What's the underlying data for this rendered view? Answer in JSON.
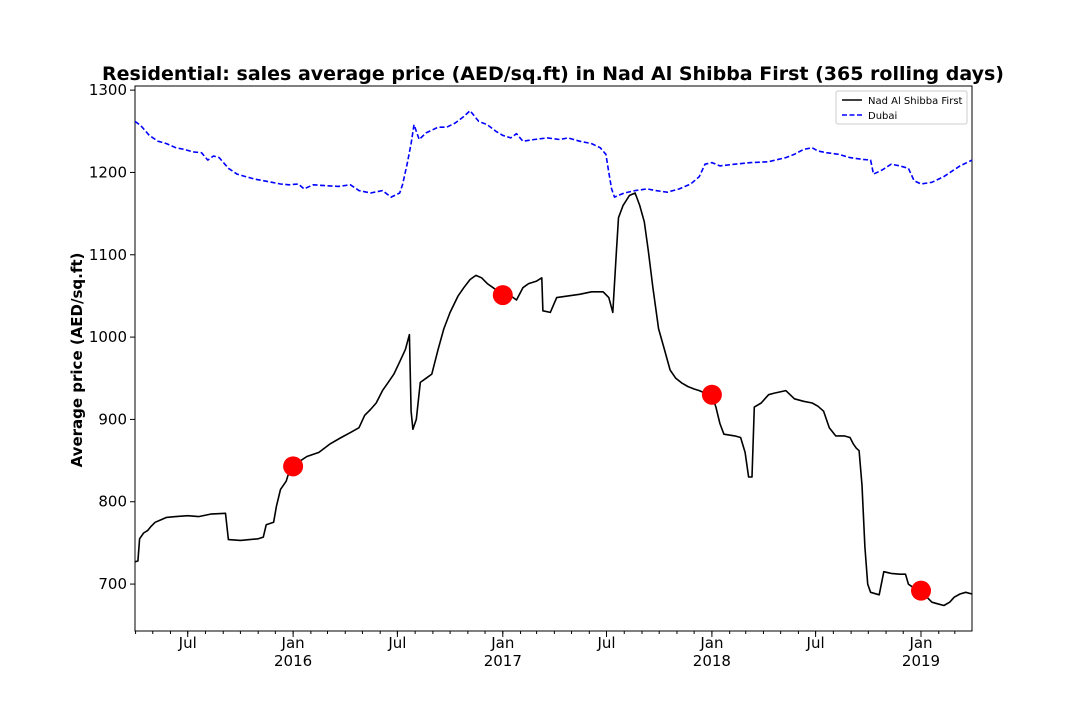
{
  "chart_data": {
    "type": "line",
    "title": "Residential: sales average price (AED/sq.ft) in Nad Al Shibba First (365 rolling days)",
    "xlabel": "",
    "ylabel": "Average price (AED/sq.ft)",
    "xlim": [
      "2015-03-31",
      "2019-03-31"
    ],
    "ylim": [
      643,
      1305
    ],
    "y_ticks": [
      700,
      800,
      900,
      1000,
      1100,
      1200,
      1300
    ],
    "x_ticks": [
      {
        "date": "2015-07-01",
        "label": "Jul",
        "year": ""
      },
      {
        "date": "2016-01-01",
        "label": "Jan",
        "year": "2016"
      },
      {
        "date": "2016-07-01",
        "label": "Jul",
        "year": ""
      },
      {
        "date": "2017-01-01",
        "label": "Jan",
        "year": "2017"
      },
      {
        "date": "2017-07-01",
        "label": "Jul",
        "year": ""
      },
      {
        "date": "2018-01-01",
        "label": "Jan",
        "year": "2018"
      },
      {
        "date": "2018-07-01",
        "label": "Jul",
        "year": ""
      },
      {
        "date": "2019-01-01",
        "label": "Jan",
        "year": "2019"
      }
    ],
    "grid": false,
    "legend_position": "top-right",
    "series": [
      {
        "name": "Nad Al Shibba First",
        "color": "#000000",
        "style": "solid",
        "points": [
          [
            "2015-03-31",
            727
          ],
          [
            "2015-04-05",
            728
          ],
          [
            "2015-04-08",
            755
          ],
          [
            "2015-04-15",
            762
          ],
          [
            "2015-04-22",
            765
          ],
          [
            "2015-04-28",
            770
          ],
          [
            "2015-05-05",
            775
          ],
          [
            "2015-05-15",
            778
          ],
          [
            "2015-05-25",
            781
          ],
          [
            "2015-06-10",
            782
          ],
          [
            "2015-07-01",
            783
          ],
          [
            "2015-07-20",
            782
          ],
          [
            "2015-08-10",
            785
          ],
          [
            "2015-09-05",
            786
          ],
          [
            "2015-09-10",
            754
          ],
          [
            "2015-10-01",
            753
          ],
          [
            "2015-11-01",
            755
          ],
          [
            "2015-11-10",
            757
          ],
          [
            "2015-11-15",
            772
          ],
          [
            "2015-11-28",
            775
          ],
          [
            "2015-12-03",
            795
          ],
          [
            "2015-12-10",
            815
          ],
          [
            "2015-12-20",
            825
          ],
          [
            "2015-12-28",
            843
          ],
          [
            "2016-01-10",
            848
          ],
          [
            "2016-01-25",
            855
          ],
          [
            "2016-02-15",
            860
          ],
          [
            "2016-03-05",
            870
          ],
          [
            "2016-03-25",
            878
          ],
          [
            "2016-04-10",
            884
          ],
          [
            "2016-04-25",
            890
          ],
          [
            "2016-05-05",
            905
          ],
          [
            "2016-05-15",
            912
          ],
          [
            "2016-05-25",
            920
          ],
          [
            "2016-06-05",
            935
          ],
          [
            "2016-06-15",
            945
          ],
          [
            "2016-06-25",
            955
          ],
          [
            "2016-07-05",
            970
          ],
          [
            "2016-07-15",
            985
          ],
          [
            "2016-07-22",
            1003
          ],
          [
            "2016-07-25",
            910
          ],
          [
            "2016-07-28",
            888
          ],
          [
            "2016-08-03",
            900
          ],
          [
            "2016-08-10",
            945
          ],
          [
            "2016-08-20",
            950
          ],
          [
            "2016-08-30",
            955
          ],
          [
            "2016-09-10",
            985
          ],
          [
            "2016-09-20",
            1010
          ],
          [
            "2016-10-01",
            1030
          ],
          [
            "2016-10-15",
            1050
          ],
          [
            "2016-10-25",
            1060
          ],
          [
            "2016-11-05",
            1070
          ],
          [
            "2016-11-15",
            1075
          ],
          [
            "2016-11-25",
            1072
          ],
          [
            "2016-12-05",
            1065
          ],
          [
            "2016-12-15",
            1060
          ],
          [
            "2016-12-25",
            1055
          ],
          [
            "2017-01-01",
            1052
          ],
          [
            "2017-01-15",
            1050
          ],
          [
            "2017-01-25",
            1045
          ],
          [
            "2017-02-05",
            1060
          ],
          [
            "2017-02-15",
            1065
          ],
          [
            "2017-03-01",
            1068
          ],
          [
            "2017-03-10",
            1072
          ],
          [
            "2017-03-12",
            1032
          ],
          [
            "2017-03-25",
            1030
          ],
          [
            "2017-04-05",
            1048
          ],
          [
            "2017-04-25",
            1050
          ],
          [
            "2017-05-15",
            1052
          ],
          [
            "2017-06-05",
            1055
          ],
          [
            "2017-06-25",
            1055
          ],
          [
            "2017-07-05",
            1048
          ],
          [
            "2017-07-12",
            1030
          ],
          [
            "2017-07-18",
            1100
          ],
          [
            "2017-07-22",
            1145
          ],
          [
            "2017-07-30",
            1160
          ],
          [
            "2017-08-10",
            1172
          ],
          [
            "2017-08-20",
            1175
          ],
          [
            "2017-08-28",
            1160
          ],
          [
            "2017-09-05",
            1140
          ],
          [
            "2017-09-12",
            1105
          ],
          [
            "2017-09-20",
            1060
          ],
          [
            "2017-09-30",
            1010
          ],
          [
            "2017-10-10",
            985
          ],
          [
            "2017-10-20",
            960
          ],
          [
            "2017-10-30",
            950
          ],
          [
            "2017-11-10",
            944
          ],
          [
            "2017-11-20",
            940
          ],
          [
            "2017-12-01",
            937
          ],
          [
            "2017-12-10",
            935
          ],
          [
            "2017-12-20",
            932
          ],
          [
            "2018-01-01",
            930
          ],
          [
            "2018-01-08",
            915
          ],
          [
            "2018-01-15",
            895
          ],
          [
            "2018-01-22",
            882
          ],
          [
            "2018-02-10",
            880
          ],
          [
            "2018-02-20",
            878
          ],
          [
            "2018-02-28",
            860
          ],
          [
            "2018-03-06",
            830
          ],
          [
            "2018-03-12",
            830
          ],
          [
            "2018-03-16",
            915
          ],
          [
            "2018-03-28",
            920
          ],
          [
            "2018-04-10",
            930
          ],
          [
            "2018-04-20",
            932
          ],
          [
            "2018-05-10",
            935
          ],
          [
            "2018-05-25",
            925
          ],
          [
            "2018-06-10",
            922
          ],
          [
            "2018-06-25",
            920
          ],
          [
            "2018-07-05",
            916
          ],
          [
            "2018-07-15",
            910
          ],
          [
            "2018-07-25",
            890
          ],
          [
            "2018-08-05",
            880
          ],
          [
            "2018-08-20",
            880
          ],
          [
            "2018-08-30",
            878
          ],
          [
            "2018-09-05",
            870
          ],
          [
            "2018-09-10",
            865
          ],
          [
            "2018-09-15",
            862
          ],
          [
            "2018-09-20",
            820
          ],
          [
            "2018-09-25",
            745
          ],
          [
            "2018-09-30",
            700
          ],
          [
            "2018-10-05",
            690
          ],
          [
            "2018-10-20",
            687
          ],
          [
            "2018-10-28",
            715
          ],
          [
            "2018-11-10",
            713
          ],
          [
            "2018-11-25",
            712
          ],
          [
            "2018-12-05",
            712
          ],
          [
            "2018-12-10",
            700
          ],
          [
            "2018-12-20",
            695
          ],
          [
            "2019-01-01",
            692
          ],
          [
            "2019-01-10",
            685
          ],
          [
            "2019-01-20",
            678
          ],
          [
            "2019-01-30",
            676
          ],
          [
            "2019-02-10",
            674
          ],
          [
            "2019-02-20",
            678
          ],
          [
            "2019-02-28",
            684
          ],
          [
            "2019-03-10",
            688
          ],
          [
            "2019-03-20",
            690
          ],
          [
            "2019-03-31",
            688
          ]
        ]
      },
      {
        "name": "Dubai",
        "color": "#0000ff",
        "style": "dashed",
        "points": [
          [
            "2015-03-31",
            1262
          ],
          [
            "2015-04-10",
            1257
          ],
          [
            "2015-04-25",
            1245
          ],
          [
            "2015-05-10",
            1238
          ],
          [
            "2015-05-25",
            1235
          ],
          [
            "2015-06-10",
            1230
          ],
          [
            "2015-06-25",
            1228
          ],
          [
            "2015-07-10",
            1225
          ],
          [
            "2015-07-25",
            1224
          ],
          [
            "2015-08-05",
            1215
          ],
          [
            "2015-08-15",
            1220
          ],
          [
            "2015-08-25",
            1218
          ],
          [
            "2015-09-10",
            1205
          ],
          [
            "2015-09-25",
            1198
          ],
          [
            "2015-10-10",
            1195
          ],
          [
            "2015-10-25",
            1192
          ],
          [
            "2015-11-10",
            1190
          ],
          [
            "2015-11-25",
            1188
          ],
          [
            "2015-12-10",
            1186
          ],
          [
            "2015-12-25",
            1185
          ],
          [
            "2016-01-10",
            1186
          ],
          [
            "2016-01-20",
            1180
          ],
          [
            "2016-02-05",
            1185
          ],
          [
            "2016-02-25",
            1184
          ],
          [
            "2016-03-20",
            1183
          ],
          [
            "2016-04-10",
            1185
          ],
          [
            "2016-04-25",
            1178
          ],
          [
            "2016-05-15",
            1175
          ],
          [
            "2016-06-05",
            1178
          ],
          [
            "2016-06-20",
            1170
          ],
          [
            "2016-07-05",
            1175
          ],
          [
            "2016-07-10",
            1185
          ],
          [
            "2016-07-18",
            1210
          ],
          [
            "2016-07-25",
            1235
          ],
          [
            "2016-07-30",
            1258
          ],
          [
            "2016-08-08",
            1240
          ],
          [
            "2016-08-20",
            1248
          ],
          [
            "2016-09-10",
            1255
          ],
          [
            "2016-09-25",
            1255
          ],
          [
            "2016-10-10",
            1260
          ],
          [
            "2016-10-25",
            1268
          ],
          [
            "2016-11-05",
            1275
          ],
          [
            "2016-11-20",
            1262
          ],
          [
            "2016-12-05",
            1258
          ],
          [
            "2016-12-20",
            1250
          ],
          [
            "2017-01-01",
            1245
          ],
          [
            "2017-01-15",
            1242
          ],
          [
            "2017-01-25",
            1247
          ],
          [
            "2017-02-05",
            1238
          ],
          [
            "2017-02-25",
            1240
          ],
          [
            "2017-03-20",
            1242
          ],
          [
            "2017-04-10",
            1240
          ],
          [
            "2017-04-25",
            1242
          ],
          [
            "2017-05-15",
            1238
          ],
          [
            "2017-06-05",
            1235
          ],
          [
            "2017-06-20",
            1230
          ],
          [
            "2017-06-30",
            1222
          ],
          [
            "2017-07-05",
            1200
          ],
          [
            "2017-07-10",
            1180
          ],
          [
            "2017-07-15",
            1170
          ],
          [
            "2017-08-01",
            1175
          ],
          [
            "2017-08-20",
            1178
          ],
          [
            "2017-09-10",
            1180
          ],
          [
            "2017-09-25",
            1178
          ],
          [
            "2017-10-15",
            1176
          ],
          [
            "2017-11-05",
            1180
          ],
          [
            "2017-11-25",
            1186
          ],
          [
            "2017-12-10",
            1195
          ],
          [
            "2017-12-20",
            1210
          ],
          [
            "2018-01-01",
            1212
          ],
          [
            "2018-01-15",
            1208
          ],
          [
            "2018-02-10",
            1210
          ],
          [
            "2018-03-10",
            1212
          ],
          [
            "2018-04-10",
            1213
          ],
          [
            "2018-05-10",
            1218
          ],
          [
            "2018-05-25",
            1222
          ],
          [
            "2018-06-10",
            1228
          ],
          [
            "2018-06-25",
            1230
          ],
          [
            "2018-07-05",
            1226
          ],
          [
            "2018-07-20",
            1224
          ],
          [
            "2018-08-10",
            1222
          ],
          [
            "2018-08-30",
            1218
          ],
          [
            "2018-09-20",
            1216
          ],
          [
            "2018-10-05",
            1215
          ],
          [
            "2018-10-10",
            1198
          ],
          [
            "2018-10-25",
            1203
          ],
          [
            "2018-11-10",
            1210
          ],
          [
            "2018-11-25",
            1208
          ],
          [
            "2018-12-10",
            1205
          ],
          [
            "2018-12-20",
            1190
          ],
          [
            "2019-01-01",
            1186
          ],
          [
            "2019-01-20",
            1188
          ],
          [
            "2019-02-10",
            1195
          ],
          [
            "2019-02-25",
            1202
          ],
          [
            "2019-03-10",
            1208
          ],
          [
            "2019-03-31",
            1215
          ]
        ]
      }
    ],
    "markers": [
      {
        "date": "2016-01-01",
        "value": 843,
        "color": "#ff0000"
      },
      {
        "date": "2017-01-01",
        "value": 1051,
        "color": "#ff0000"
      },
      {
        "date": "2018-01-01",
        "value": 930,
        "color": "#ff0000"
      },
      {
        "date": "2019-01-01",
        "value": 692,
        "color": "#ff0000"
      }
    ]
  }
}
